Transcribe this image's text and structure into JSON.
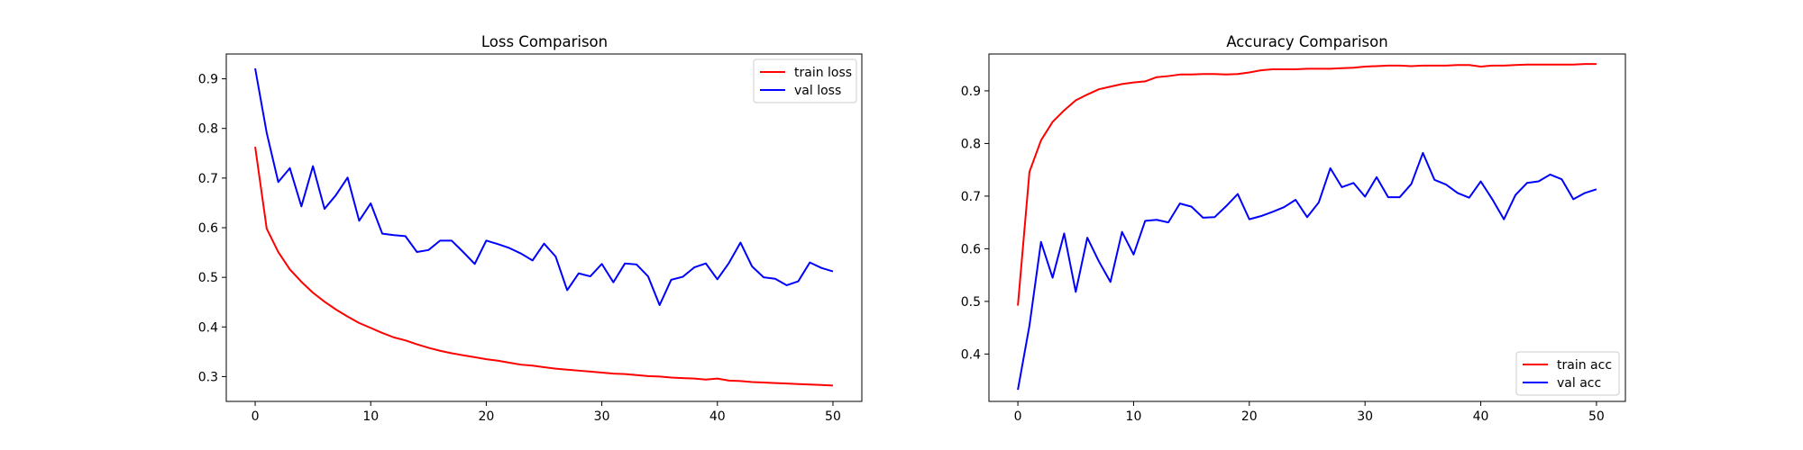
{
  "chart_data": [
    {
      "type": "line",
      "title": "Loss Comparison",
      "xlabel": "",
      "ylabel": "",
      "xlim": [
        -2.5,
        52.5
      ],
      "ylim": [
        0.25,
        0.95
      ],
      "xticks": [
        0,
        10,
        20,
        30,
        40,
        50
      ],
      "yticks": [
        0.3,
        0.4,
        0.5,
        0.6,
        0.7,
        0.8,
        0.9
      ],
      "grid": false,
      "legend_position": "upper right",
      "x": [
        0,
        1,
        2,
        3,
        4,
        5,
        6,
        7,
        8,
        9,
        10,
        11,
        12,
        13,
        14,
        15,
        16,
        17,
        18,
        19,
        20,
        21,
        22,
        23,
        24,
        25,
        26,
        27,
        28,
        29,
        30,
        31,
        32,
        33,
        34,
        35,
        36,
        37,
        38,
        39,
        40,
        41,
        42,
        43,
        44,
        45,
        46,
        47,
        48,
        49,
        50
      ],
      "series": [
        {
          "name": "train loss",
          "color": "#ff0000",
          "values": [
            0.763,
            0.598,
            0.551,
            0.516,
            0.491,
            0.469,
            0.451,
            0.435,
            0.421,
            0.408,
            0.398,
            0.388,
            0.379,
            0.373,
            0.365,
            0.358,
            0.352,
            0.347,
            0.343,
            0.339,
            0.335,
            0.332,
            0.328,
            0.324,
            0.322,
            0.319,
            0.316,
            0.314,
            0.312,
            0.31,
            0.308,
            0.306,
            0.305,
            0.303,
            0.301,
            0.3,
            0.298,
            0.297,
            0.296,
            0.294,
            0.296,
            0.292,
            0.291,
            0.289,
            0.288,
            0.287,
            0.286,
            0.285,
            0.284,
            0.283,
            0.282
          ]
        },
        {
          "name": "val loss",
          "color": "#0000ff",
          "values": [
            0.921,
            0.791,
            0.692,
            0.72,
            0.643,
            0.724,
            0.638,
            0.666,
            0.701,
            0.614,
            0.649,
            0.588,
            0.585,
            0.583,
            0.551,
            0.555,
            0.574,
            0.574,
            0.551,
            0.527,
            0.574,
            0.567,
            0.559,
            0.548,
            0.534,
            0.568,
            0.542,
            0.474,
            0.508,
            0.502,
            0.527,
            0.49,
            0.528,
            0.526,
            0.502,
            0.444,
            0.495,
            0.501,
            0.52,
            0.528,
            0.496,
            0.529,
            0.57,
            0.522,
            0.5,
            0.497,
            0.484,
            0.492,
            0.53,
            0.519,
            0.512
          ]
        }
      ]
    },
    {
      "type": "line",
      "title": "Accuracy Comparison",
      "xlabel": "",
      "ylabel": "",
      "xlim": [
        -2.5,
        52.5
      ],
      "ylim": [
        0.31,
        0.97
      ],
      "xticks": [
        0,
        10,
        20,
        30,
        40,
        50
      ],
      "yticks": [
        0.4,
        0.5,
        0.6,
        0.7,
        0.8,
        0.9
      ],
      "grid": false,
      "legend_position": "lower right",
      "x": [
        0,
        1,
        2,
        3,
        4,
        5,
        6,
        7,
        8,
        9,
        10,
        11,
        12,
        13,
        14,
        15,
        16,
        17,
        18,
        19,
        20,
        21,
        22,
        23,
        24,
        25,
        26,
        27,
        28,
        29,
        30,
        31,
        32,
        33,
        34,
        35,
        36,
        37,
        38,
        39,
        40,
        41,
        42,
        43,
        44,
        45,
        46,
        47,
        48,
        49,
        50
      ],
      "series": [
        {
          "name": "train acc",
          "color": "#ff0000",
          "values": [
            0.492,
            0.746,
            0.806,
            0.841,
            0.863,
            0.882,
            0.893,
            0.903,
            0.908,
            0.913,
            0.916,
            0.918,
            0.926,
            0.928,
            0.931,
            0.931,
            0.932,
            0.932,
            0.931,
            0.932,
            0.935,
            0.939,
            0.941,
            0.941,
            0.941,
            0.942,
            0.942,
            0.942,
            0.943,
            0.944,
            0.946,
            0.947,
            0.948,
            0.948,
            0.947,
            0.948,
            0.948,
            0.948,
            0.949,
            0.949,
            0.946,
            0.948,
            0.948,
            0.949,
            0.95,
            0.95,
            0.95,
            0.95,
            0.95,
            0.951,
            0.951
          ]
        },
        {
          "name": "val acc",
          "color": "#0000ff",
          "values": [
            0.332,
            0.454,
            0.613,
            0.545,
            0.629,
            0.518,
            0.621,
            0.576,
            0.537,
            0.632,
            0.589,
            0.653,
            0.655,
            0.65,
            0.686,
            0.68,
            0.659,
            0.66,
            0.681,
            0.704,
            0.656,
            0.662,
            0.67,
            0.679,
            0.693,
            0.66,
            0.688,
            0.753,
            0.717,
            0.725,
            0.699,
            0.736,
            0.698,
            0.698,
            0.723,
            0.782,
            0.731,
            0.722,
            0.706,
            0.697,
            0.728,
            0.694,
            0.656,
            0.702,
            0.725,
            0.728,
            0.741,
            0.732,
            0.694,
            0.706,
            0.713
          ]
        }
      ]
    }
  ]
}
